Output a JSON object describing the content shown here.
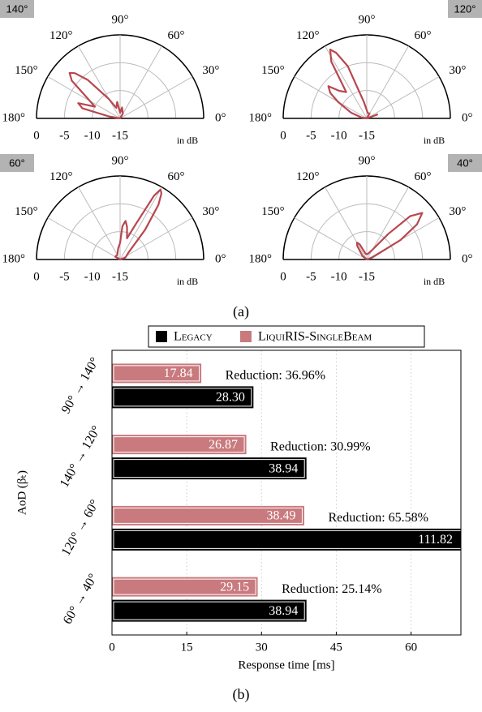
{
  "chart_data": [
    {
      "type": "polar",
      "tag": "140°",
      "rlim": [
        -15,
        0
      ],
      "rticks": [
        0,
        -5,
        -10,
        -15
      ],
      "r_label": "in dB",
      "thetaticks": [
        {
          "value": 0,
          "label": "0°"
        },
        {
          "value": 30,
          "label": "30°"
        },
        {
          "value": 60,
          "label": "60°"
        },
        {
          "value": 90,
          "label": "90°"
        },
        {
          "value": 120,
          "label": "120°"
        },
        {
          "value": 150,
          "label": "150°"
        },
        {
          "value": 180,
          "label": "180°"
        }
      ],
      "series": [
        {
          "color": "#b8474f",
          "theta": [
            0,
            30,
            60,
            80,
            90,
            100,
            110,
            120,
            130,
            135,
            138,
            142,
            148,
            155,
            160,
            165,
            170,
            180
          ],
          "values": [
            -15,
            -15,
            -14,
            -13,
            -14,
            -12,
            -13,
            -11,
            -6,
            -3.5,
            -2.8,
            -4,
            -8,
            -10,
            -7,
            -8,
            -13,
            -15
          ]
        }
      ]
    },
    {
      "type": "polar",
      "tag": "120°",
      "rlim": [
        -15,
        0
      ],
      "rticks": [
        0,
        -5,
        -10,
        -15
      ],
      "r_label": "in dB",
      "thetaticks": [
        {
          "value": 0,
          "label": "0°"
        },
        {
          "value": 30,
          "label": "30°"
        },
        {
          "value": 60,
          "label": "60°"
        },
        {
          "value": 90,
          "label": "90°"
        },
        {
          "value": 120,
          "label": "120°"
        },
        {
          "value": 150,
          "label": "150°"
        },
        {
          "value": 180,
          "label": "180°"
        }
      ],
      "series": [
        {
          "color": "#b8474f",
          "theta": [
            0,
            20,
            40,
            60,
            80,
            100,
            110,
            115,
            118,
            122,
            128,
            135,
            140,
            145,
            150,
            160,
            170,
            180
          ],
          "values": [
            -15,
            -13,
            -15,
            -14,
            -14,
            -12,
            -5,
            -2,
            -1,
            -3,
            -9,
            -8,
            -6,
            -7,
            -9,
            -12,
            -14,
            -15
          ]
        }
      ]
    },
    {
      "type": "polar",
      "tag": "60°",
      "rlim": [
        -15,
        0
      ],
      "rticks": [
        0,
        -5,
        -10,
        -15
      ],
      "r_label": "in dB",
      "thetaticks": [
        {
          "value": 0,
          "label": "0°"
        },
        {
          "value": 30,
          "label": "30°"
        },
        {
          "value": 60,
          "label": "60°"
        },
        {
          "value": 90,
          "label": "90°"
        },
        {
          "value": 120,
          "label": "120°"
        },
        {
          "value": 150,
          "label": "150°"
        },
        {
          "value": 180,
          "label": "180°"
        }
      ],
      "series": [
        {
          "color": "#b8474f",
          "theta": [
            0,
            20,
            40,
            50,
            55,
            58,
            60,
            62,
            66,
            72,
            78,
            82,
            86,
            90,
            100,
            120,
            150,
            180
          ],
          "values": [
            -15,
            -14,
            -13,
            -8,
            -3,
            -1,
            -0.5,
            -2,
            -8,
            -11,
            -9,
            -8,
            -9,
            -12,
            -13,
            -14,
            -14,
            -15
          ]
        }
      ]
    },
    {
      "type": "polar",
      "tag": "40°",
      "rlim": [
        -15,
        0
      ],
      "rticks": [
        0,
        -5,
        -10,
        -15
      ],
      "r_label": "in dB",
      "thetaticks": [
        {
          "value": 0,
          "label": "0°"
        },
        {
          "value": 30,
          "label": "30°"
        },
        {
          "value": 60,
          "label": "60°"
        },
        {
          "value": 90,
          "label": "90°"
        },
        {
          "value": 120,
          "label": "120°"
        },
        {
          "value": 150,
          "label": "150°"
        },
        {
          "value": 180,
          "label": "180°"
        }
      ],
      "series": [
        {
          "color": "#b8474f",
          "theta": [
            0,
            20,
            30,
            35,
            40,
            45,
            50,
            60,
            80,
            100,
            115,
            120,
            125,
            140,
            160,
            180
          ],
          "values": [
            -15,
            -14,
            -8,
            -4,
            -2,
            -4,
            -9,
            -13,
            -14,
            -14,
            -12,
            -11.5,
            -12,
            -14,
            -15,
            -15
          ]
        }
      ]
    },
    {
      "type": "hbar",
      "xlabel": "Response time [ms]",
      "ylabel": "AoD (βₜ)",
      "categories": [
        "90° → 140°",
        "140° → 120°",
        "120° → 60°",
        "60° → 40°"
      ],
      "series": [
        {
          "name": "Legacy",
          "color": "#000000",
          "values": [
            28.3,
            38.94,
            111.82,
            38.94
          ],
          "value_labels": [
            "28.30",
            "38.94",
            "111.82",
            "38.94"
          ]
        },
        {
          "name": "LiquiRIS-SingleBeam",
          "color": "#c97a7e",
          "values": [
            17.84,
            26.87,
            38.49,
            29.15
          ],
          "value_labels": [
            "17.84",
            "26.87",
            "38.49",
            "29.15"
          ]
        }
      ],
      "annotations": [
        "Reduction: 36.96%",
        "Reduction: 30.99%",
        "Reduction: 65.58%",
        "Reduction: 25.14%"
      ],
      "xlim": [
        0,
        70
      ],
      "xticks": [
        0,
        15,
        30,
        45,
        60
      ],
      "grid": true
    }
  ],
  "captions": [
    "(a)",
    "(b)"
  ]
}
